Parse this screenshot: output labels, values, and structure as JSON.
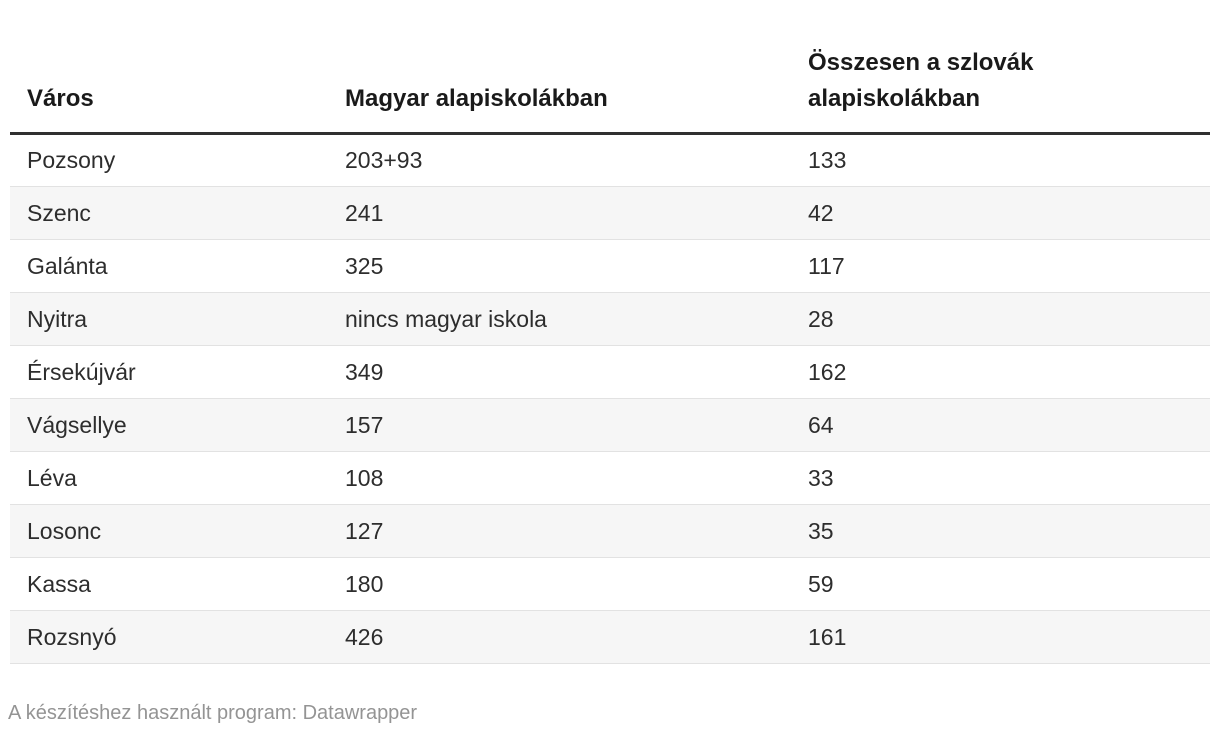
{
  "chart_data": {
    "type": "table",
    "columns": [
      "Város",
      "Magyar alapiskolákban",
      "Összesen a szlovák alapiskolákban"
    ],
    "rows": [
      [
        "Pozsony",
        "203+93",
        "133"
      ],
      [
        "Szenc",
        "241",
        "42"
      ],
      [
        "Galánta",
        "325",
        "117"
      ],
      [
        "Nyitra",
        "nincs magyar iskola",
        "28"
      ],
      [
        "Érsekújvár",
        "349",
        "162"
      ],
      [
        "Vágsellye",
        "157",
        "64"
      ],
      [
        "Léva",
        "108",
        "33"
      ],
      [
        "Losonc",
        "127",
        "35"
      ],
      [
        "Kassa",
        "180",
        "59"
      ],
      [
        "Rozsnyó",
        "426",
        "161"
      ]
    ],
    "layout_hints": {
      "zebra_striping": true,
      "striped_rows": "even",
      "header_rule": "3px solid dark",
      "row_borders": true
    }
  },
  "footer": {
    "attribution": "A készítéshez használt program: Datawrapper"
  },
  "colors": {
    "header_text": "#1a1a1a",
    "body_text": "#2d2d2d",
    "header_rule": "#303030",
    "row_stripe": "#f6f6f6",
    "row_border": "#e2e2e2",
    "footer_text": "#949494",
    "background": "#ffffff"
  }
}
